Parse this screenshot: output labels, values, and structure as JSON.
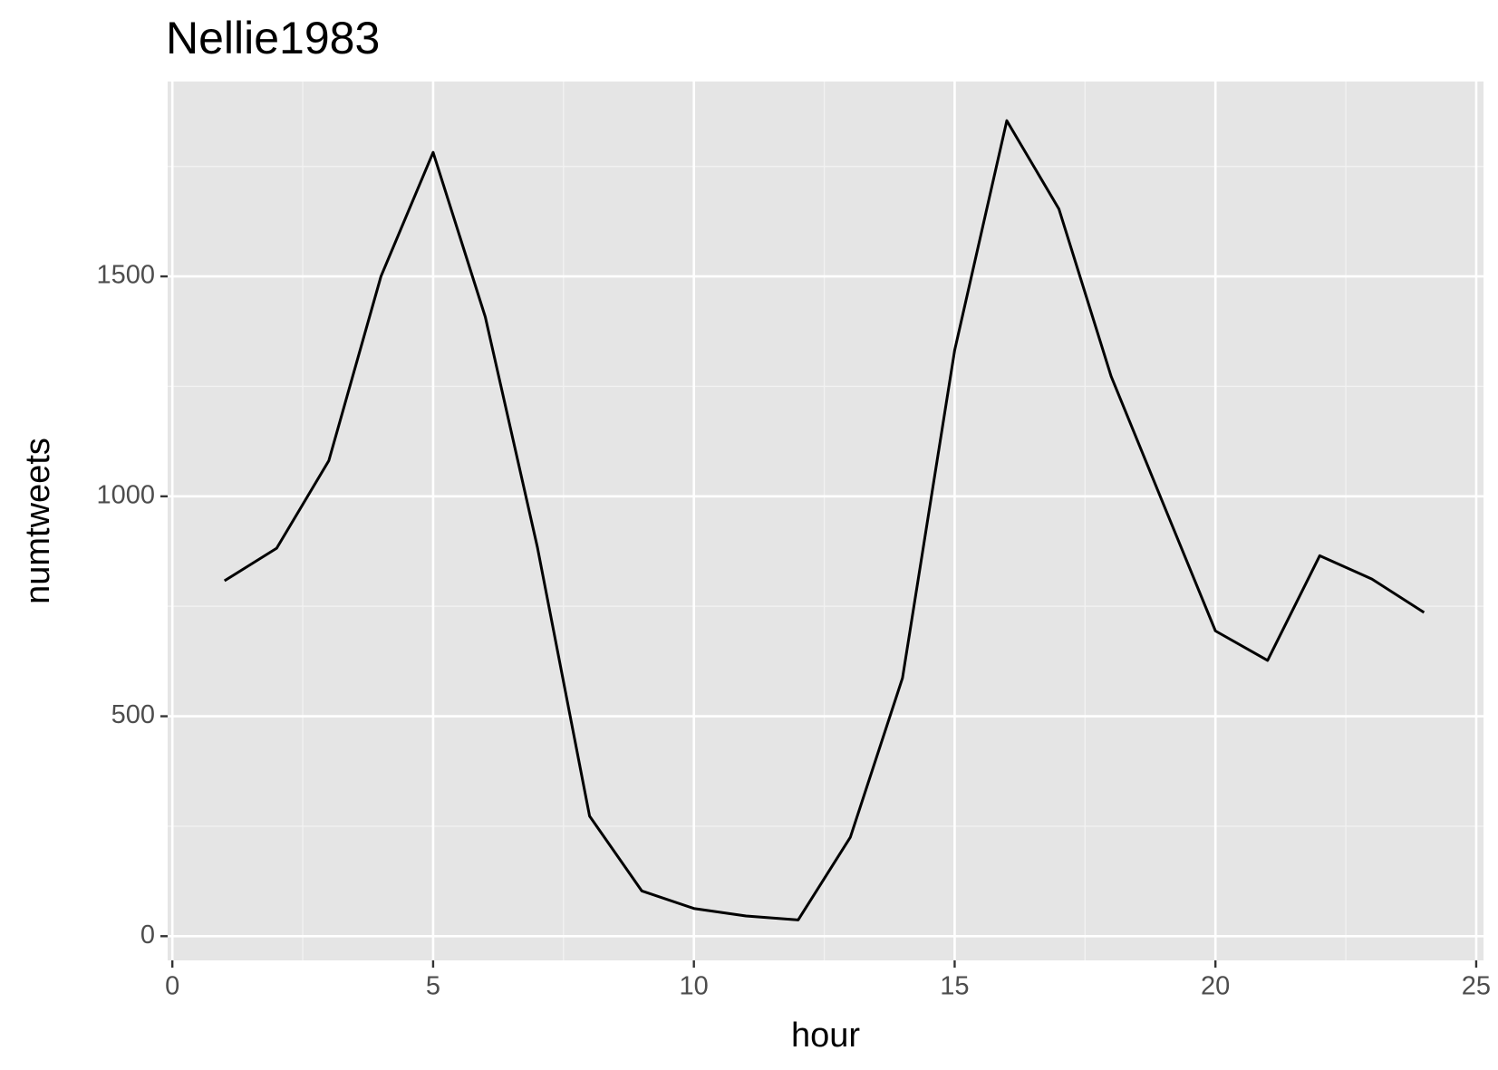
{
  "chart_data": {
    "type": "line",
    "title": "Nellie1983",
    "x_label": "hour",
    "y_label": "numtweets",
    "x": [
      1,
      2,
      3,
      4,
      5,
      6,
      7,
      8,
      9,
      10,
      11,
      12,
      13,
      14,
      15,
      16,
      17,
      18,
      19,
      20,
      21,
      22,
      23,
      24
    ],
    "series": [
      {
        "name": "numtweets",
        "color": "#000000",
        "values": [
          808,
          882,
          1081,
          1500,
          1782,
          1408,
          884,
          273,
          103,
          63,
          46,
          37,
          225,
          587,
          1332,
          1854,
          1653,
          1273,
          983,
          694,
          627,
          865,
          812,
          736
        ]
      }
    ],
    "xlim": [
      -0.09,
      25.14
    ],
    "ylim": [
      -55,
      1943
    ],
    "xticks": [
      0,
      5,
      10,
      15,
      20,
      25
    ],
    "yticks": [
      0,
      500,
      1000,
      1500
    ],
    "grid": true
  }
}
